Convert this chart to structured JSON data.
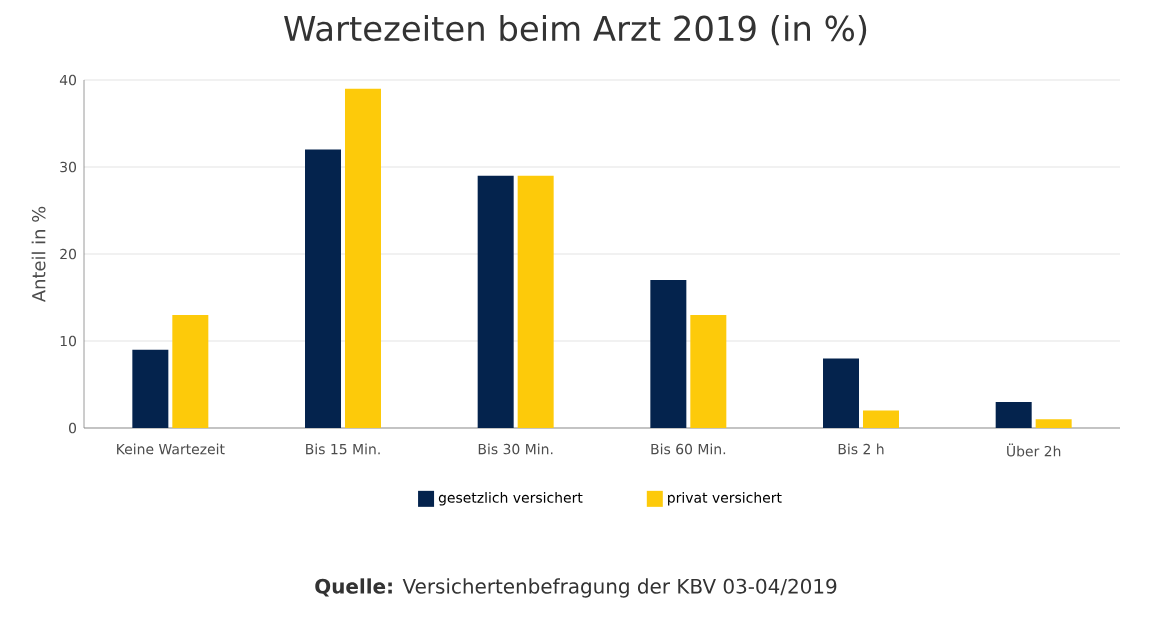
{
  "chart_data": {
    "type": "bar",
    "title": "Wartezeiten beim Arzt 2019 (in %)",
    "ylabel": "Anteil in %",
    "categories": [
      "Keine Wartezeit",
      "Bis 15 Min.",
      "Bis 30 Min.",
      "Bis 60 Min.",
      "Bis 2 h",
      "Über 2h"
    ],
    "series": [
      {
        "name": "gesetzlich versichert",
        "color": "#04234d",
        "values": [
          9,
          32,
          29,
          17,
          8,
          3
        ]
      },
      {
        "name": "privat versichert",
        "color": "#fdca0a",
        "values": [
          13,
          39,
          29,
          13,
          2,
          1
        ]
      }
    ],
    "ylim": [
      0,
      40
    ],
    "yticks": [
      0,
      10,
      20,
      30,
      40
    ],
    "grid": "y",
    "legend": "bottom",
    "annotations": [
      "**Quelle:** Versichertenbefragung der KBV 03-04/2019"
    ]
  }
}
